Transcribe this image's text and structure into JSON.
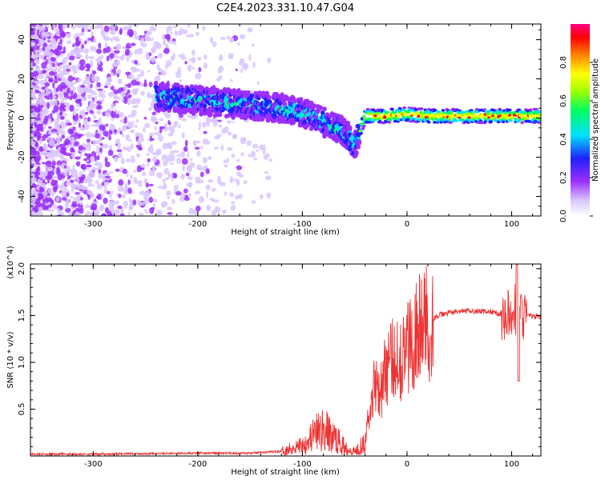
{
  "title": "C2E4.2023.331.10.47.G04",
  "chart_data": [
    {
      "type": "heatmap",
      "xlabel": "Height of straight line (km)",
      "ylabel": "Frequency (Hz)",
      "xlim": [
        -360,
        128
      ],
      "ylim": [
        -50,
        48
      ],
      "xticks": [
        -300,
        -200,
        -100,
        0,
        100
      ],
      "yticks": [
        -40,
        -20,
        0,
        20,
        40
      ],
      "colorbar": {
        "label": "Normalized spectral amplitude",
        "range": [
          0.0,
          1.0
        ],
        "ticks": [
          "0.0",
          "0.2",
          "0.4",
          "0.6",
          "0.8"
        ],
        "colors": [
          "#ffffff",
          "#d9c7ff",
          "#9b30ff",
          "#2020ff",
          "#00e0ff",
          "#00ff60",
          "#a0ff00",
          "#ffff00",
          "#ff8000",
          "#ff0000",
          "#ff0080"
        ]
      },
      "ridge": {
        "x": [
          -240,
          -200,
          -160,
          -120,
          -100,
          -80,
          -60,
          -50,
          -40,
          -20,
          0,
          20,
          60,
          100,
          128
        ],
        "frequency": [
          11,
          9,
          7,
          5,
          3,
          -2,
          -7,
          -14,
          1,
          1,
          2,
          1,
          1,
          1,
          1
        ]
      }
    },
    {
      "type": "line",
      "xlabel": "Height of straight line (km)",
      "ylabel": "SNR (10 * v/v)",
      "yscale_label": "(x10^4)",
      "xlim": [
        -360,
        128
      ],
      "ylim": [
        0,
        2.05
      ],
      "xticks": [
        -300,
        -200,
        -100,
        0,
        100
      ],
      "yticks": [
        0.5,
        1.0,
        1.5,
        2.0
      ],
      "series": [
        {
          "color": "#ee3333",
          "x": [
            -360,
            -300,
            -250,
            -200,
            -150,
            -120,
            -100,
            -90,
            -80,
            -70,
            -60,
            -50,
            -45,
            -40,
            -35,
            -30,
            -25,
            -20,
            -15,
            -10,
            -5,
            0,
            10,
            20,
            30,
            40,
            60,
            80,
            95,
            100,
            103,
            106,
            110,
            115,
            128
          ],
          "y": [
            0.02,
            0.02,
            0.025,
            0.03,
            0.03,
            0.05,
            0.12,
            0.22,
            0.28,
            0.2,
            0.1,
            0.05,
            0.1,
            0.2,
            0.5,
            0.85,
            0.7,
            0.95,
            1.0,
            1.1,
            1.05,
            1.15,
            1.35,
            1.42,
            1.5,
            1.53,
            1.55,
            1.54,
            1.5,
            1.48,
            1.55,
            1.6,
            1.52,
            1.5,
            1.48
          ]
        }
      ]
    }
  ]
}
